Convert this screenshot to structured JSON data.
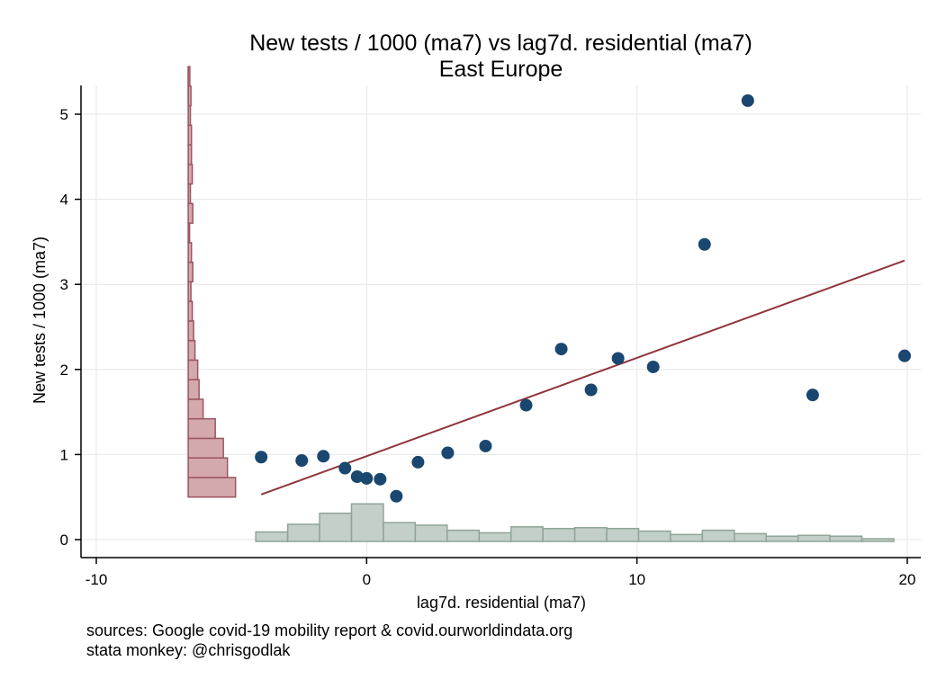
{
  "chart_data": {
    "type": "scatter",
    "title": "New tests / 1000 (ma7) vs lag7d. residential (ma7)",
    "subtitle": "East Europe",
    "xlabel": "lag7d. residential (ma7)",
    "ylabel": "New tests / 1000 (ma7)",
    "xlim": [
      -10,
      20
    ],
    "ylim": [
      0,
      5
    ],
    "x_ticks": [
      "-10",
      "0",
      "10",
      "20"
    ],
    "y_ticks": [
      "0",
      "1",
      "2",
      "3",
      "4",
      "5"
    ],
    "grid": true,
    "colors": {
      "points": "#1a476f",
      "fit_line": "#90353b",
      "y_hist_fill": "#d4a9ad",
      "y_hist_edge": "#9b5560",
      "x_hist_fill": "#c3cfc9",
      "x_hist_edge": "#8fa597"
    },
    "points": [
      {
        "x": -3.9,
        "y": 0.97
      },
      {
        "x": -2.4,
        "y": 0.93
      },
      {
        "x": -1.6,
        "y": 0.98
      },
      {
        "x": -0.8,
        "y": 0.84
      },
      {
        "x": -0.35,
        "y": 0.74
      },
      {
        "x": 0.0,
        "y": 0.72
      },
      {
        "x": 0.5,
        "y": 0.71
      },
      {
        "x": 1.1,
        "y": 0.51
      },
      {
        "x": 1.9,
        "y": 0.91
      },
      {
        "x": 3.0,
        "y": 1.02
      },
      {
        "x": 4.4,
        "y": 1.1
      },
      {
        "x": 5.9,
        "y": 1.58
      },
      {
        "x": 7.2,
        "y": 2.24
      },
      {
        "x": 8.3,
        "y": 1.76
      },
      {
        "x": 9.3,
        "y": 2.13
      },
      {
        "x": 10.6,
        "y": 2.03
      },
      {
        "x": 12.5,
        "y": 3.47
      },
      {
        "x": 14.1,
        "y": 5.16
      },
      {
        "x": 16.5,
        "y": 1.7
      },
      {
        "x": 19.9,
        "y": 2.16
      }
    ],
    "fit_line": {
      "x": [
        -3.9,
        19.9
      ],
      "y": [
        0.53,
        3.28
      ]
    },
    "x_histogram": {
      "x_start": -4.1,
      "bin_width": 1.18,
      "heights": [
        0.09,
        0.18,
        0.31,
        0.42,
        0.2,
        0.17,
        0.11,
        0.08,
        0.15,
        0.13,
        0.14,
        0.13,
        0.1,
        0.06,
        0.11,
        0.07,
        0.04,
        0.05,
        0.04,
        0.01
      ]
    },
    "y_histogram": {
      "y_start": 0.5,
      "bin_width": 0.23,
      "baseline_x": -6.6,
      "widths": [
        1.75,
        1.45,
        1.3,
        1.0,
        0.55,
        0.4,
        0.35,
        0.25,
        0.2,
        0.15,
        0.1,
        0.17,
        0.12,
        0.05,
        0.17,
        0.08,
        0.15,
        0.12,
        0.12,
        0.08,
        0.1,
        0.06
      ]
    }
  },
  "notes": {
    "line1": "sources: Google covid-19 mobility report & covid.ourworldindata.org",
    "line2": "stata monkey: @chrisgodlak"
  }
}
